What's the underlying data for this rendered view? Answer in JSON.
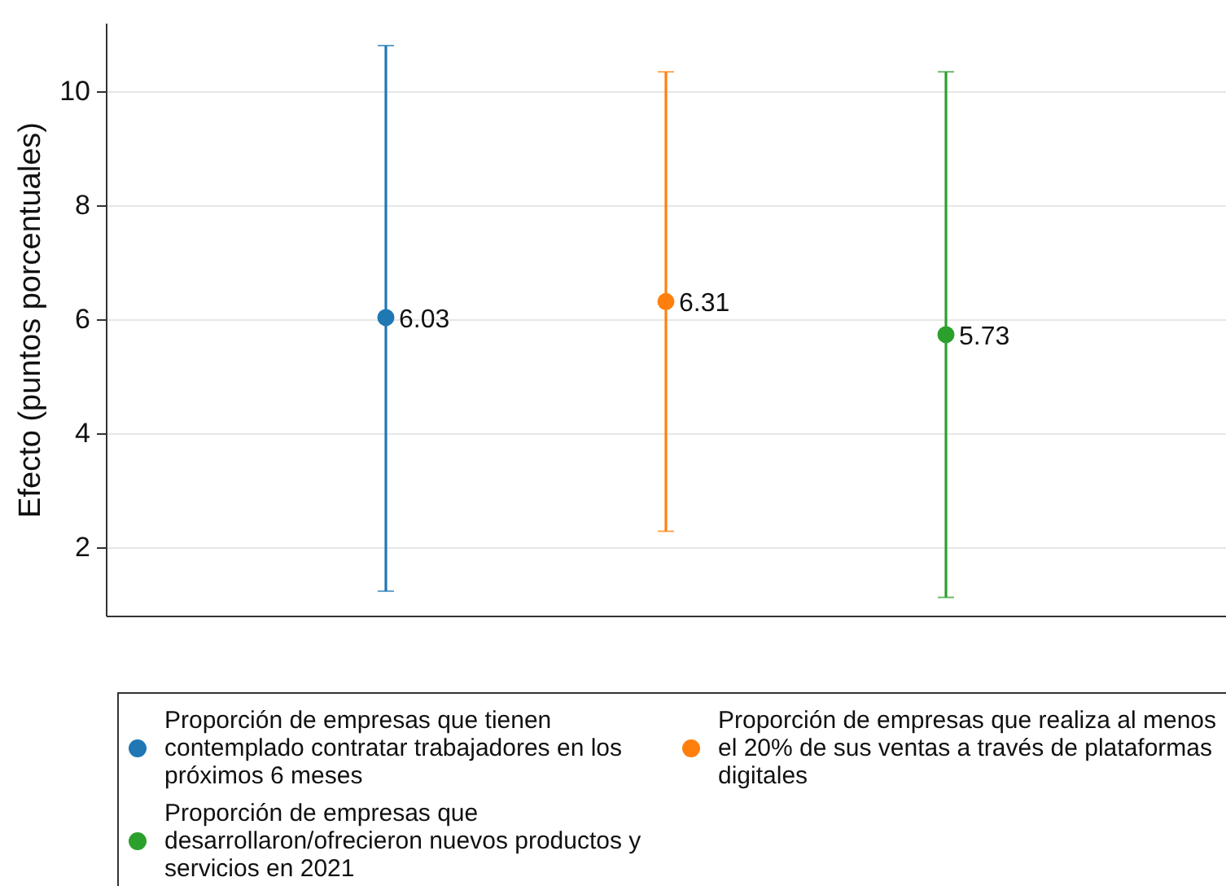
{
  "chart_data": {
    "type": "scatter",
    "ylabel": "Efecto (puntos porcentuales)",
    "categories": [
      null,
      null,
      null
    ],
    "ylim": [
      0.8,
      11.2
    ],
    "yticks": [
      2,
      4,
      6,
      8,
      10
    ],
    "grid": "y",
    "legend": "bottom",
    "tick_labels": "y",
    "marker": "circle",
    "data_labels": true,
    "series": [
      {
        "name": "Proporción de empresas que tienen contemplado contratar trabajadores en los próximos 6 meses",
        "color": "#1f77b4",
        "values": [
          6.03,
          null,
          null
        ],
        "errors": [
          [
            1.23,
            10.8
          ],
          null,
          null
        ]
      },
      {
        "name": "Proporción de empresas que realiza al menos el 20% de sus ventas a través de plataformas digitales",
        "color": "#ff7f0e",
        "values": [
          null,
          6.31,
          null
        ],
        "errors": [
          null,
          [
            2.28,
            10.34
          ],
          null
        ]
      },
      {
        "name": "Proporción de empresas que desarrollaron/ofrecieron nuevos productos y servicios en 2021",
        "color": "#2ca02c",
        "values": [
          null,
          null,
          5.73
        ],
        "errors": [
          null,
          null,
          [
            1.12,
            10.34
          ]
        ]
      }
    ]
  }
}
